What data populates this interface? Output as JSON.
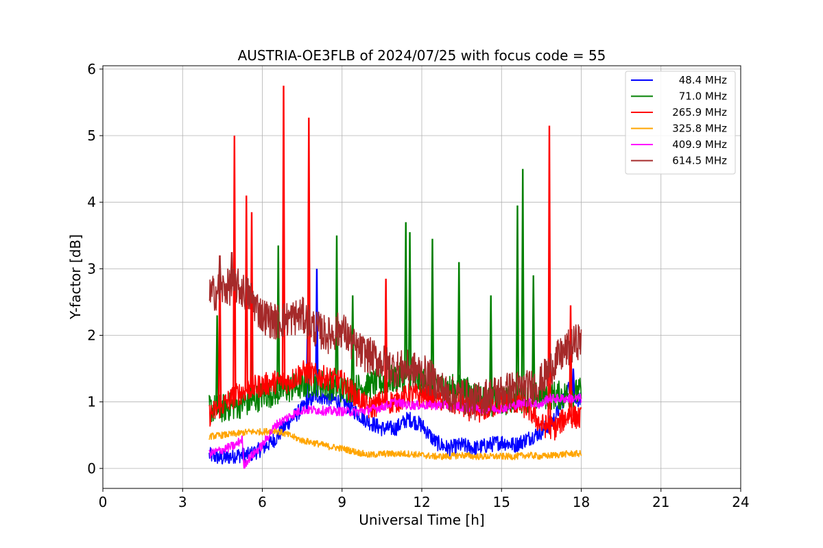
{
  "chart_data": {
    "type": "line",
    "title": "AUSTRIA-OE3FLB of 2024/07/25 with focus code = 55",
    "xlabel": "Universal Time [h]",
    "ylabel": "Y-factor [dB]",
    "xlim": [
      0,
      24
    ],
    "ylim": [
      -0.3,
      6.05
    ],
    "xticks": [
      0,
      3,
      6,
      9,
      12,
      15,
      18,
      21,
      24
    ],
    "yticks": [
      0,
      1,
      2,
      3,
      4,
      5,
      6
    ],
    "grid": true,
    "legend_position": "top-right",
    "series": [
      {
        "name": "48.4 MHz",
        "color": "#0000ff",
        "x": [
          4.0,
          4.5,
          5.0,
          5.5,
          6.0,
          6.5,
          7.0,
          7.5,
          8.0,
          8.5,
          9.0,
          9.5,
          10.0,
          10.5,
          11.0,
          11.5,
          12.0,
          12.5,
          13.0,
          13.5,
          14.0,
          14.5,
          15.0,
          15.5,
          16.0,
          16.5,
          17.0,
          17.5,
          18.0
        ],
        "y": [
          0.2,
          0.15,
          0.2,
          0.2,
          0.3,
          0.45,
          0.7,
          0.9,
          1.1,
          1.05,
          1.0,
          0.85,
          0.7,
          0.6,
          0.6,
          0.75,
          0.65,
          0.4,
          0.3,
          0.35,
          0.3,
          0.35,
          0.4,
          0.35,
          0.45,
          0.55,
          0.75,
          1.2,
          1.0
        ],
        "spikes": [
          [
            8.05,
            3.0
          ],
          [
            7.7,
            2.1
          ],
          [
            17.7,
            1.5
          ]
        ]
      },
      {
        "name": "71.0 MHz",
        "color": "#008000",
        "x": [
          4.0,
          4.5,
          5.0,
          5.5,
          6.0,
          6.5,
          7.0,
          7.5,
          8.0,
          8.5,
          9.0,
          9.5,
          10.0,
          10.5,
          11.0,
          11.5,
          12.0,
          12.5,
          13.0,
          13.5,
          14.0,
          14.5,
          15.0,
          15.5,
          16.0,
          16.5,
          17.0,
          17.5,
          18.0
        ],
        "y": [
          0.9,
          0.9,
          0.95,
          1.0,
          1.1,
          1.15,
          1.2,
          1.25,
          1.3,
          1.25,
          1.2,
          1.2,
          1.25,
          1.3,
          1.35,
          1.4,
          1.3,
          1.25,
          1.2,
          1.2,
          1.1,
          1.0,
          1.0,
          1.05,
          1.05,
          1.1,
          1.1,
          1.1,
          1.15
        ],
        "spikes": [
          [
            4.3,
            2.3
          ],
          [
            5.6,
            3.3
          ],
          [
            6.6,
            3.35
          ],
          [
            8.8,
            3.5
          ],
          [
            11.4,
            3.7
          ],
          [
            11.55,
            3.55
          ],
          [
            12.4,
            3.45
          ],
          [
            13.4,
            3.1
          ],
          [
            15.8,
            4.5
          ],
          [
            15.6,
            3.95
          ],
          [
            16.2,
            2.9
          ],
          [
            14.6,
            2.6
          ],
          [
            9.4,
            2.6
          ]
        ]
      },
      {
        "name": "265.9 MHz",
        "color": "#ff0000",
        "x": [
          4.0,
          4.5,
          5.0,
          5.5,
          6.0,
          6.5,
          7.0,
          7.5,
          8.0,
          8.5,
          9.0,
          9.5,
          10.0,
          10.5,
          11.0,
          11.5,
          12.0,
          12.5,
          13.0,
          13.5,
          14.0,
          14.5,
          15.0,
          15.5,
          16.0,
          16.5,
          17.0,
          17.5,
          18.0
        ],
        "y": [
          0.8,
          0.95,
          1.1,
          1.2,
          1.25,
          1.3,
          1.3,
          1.45,
          1.4,
          1.35,
          1.3,
          1.1,
          0.9,
          1.0,
          1.0,
          1.1,
          1.1,
          1.05,
          1.0,
          0.95,
          0.85,
          0.9,
          1.0,
          1.0,
          0.9,
          0.65,
          0.6,
          0.8,
          0.75
        ],
        "spikes": [
          [
            4.95,
            5.0
          ],
          [
            5.4,
            4.1
          ],
          [
            5.6,
            3.85
          ],
          [
            6.8,
            5.75
          ],
          [
            7.75,
            5.27
          ],
          [
            10.65,
            2.85
          ],
          [
            16.8,
            5.15
          ],
          [
            17.6,
            2.45
          ],
          [
            4.4,
            3.2
          ]
        ]
      },
      {
        "name": "325.8 MHz",
        "color": "#ffa500",
        "x": [
          4.0,
          4.5,
          5.0,
          5.5,
          6.0,
          6.5,
          7.0,
          7.5,
          8.0,
          8.5,
          9.0,
          9.5,
          10.0,
          10.5,
          11.0,
          11.5,
          12.0,
          12.5,
          13.0,
          13.5,
          14.0,
          14.5,
          15.0,
          15.5,
          16.0,
          16.5,
          17.0,
          17.5,
          18.0
        ],
        "y": [
          0.48,
          0.5,
          0.52,
          0.55,
          0.55,
          0.57,
          0.5,
          0.42,
          0.38,
          0.33,
          0.3,
          0.25,
          0.2,
          0.22,
          0.22,
          0.22,
          0.2,
          0.18,
          0.18,
          0.2,
          0.18,
          0.18,
          0.18,
          0.18,
          0.2,
          0.18,
          0.2,
          0.22,
          0.22
        ],
        "spikes": []
      },
      {
        "name": "409.9 MHz",
        "color": "#ff00ff",
        "x": [
          4.0,
          4.5,
          5.0,
          5.25,
          5.3,
          5.5,
          6.0,
          6.5,
          7.0,
          7.5,
          8.0,
          8.5,
          9.0,
          9.5,
          10.0,
          10.5,
          11.0,
          11.5,
          12.0,
          12.5,
          13.0,
          13.5,
          14.0,
          14.5,
          15.0,
          15.5,
          16.0,
          16.5,
          16.7,
          17.0,
          17.5,
          18.0
        ],
        "y": [
          0.22,
          0.28,
          0.35,
          0.45,
          0.05,
          0.15,
          0.35,
          0.65,
          0.78,
          0.88,
          0.88,
          0.86,
          0.86,
          0.85,
          0.88,
          0.92,
          1.0,
          0.95,
          0.95,
          0.95,
          0.95,
          0.93,
          0.9,
          0.9,
          0.9,
          0.95,
          1.0,
          0.95,
          1.05,
          1.05,
          1.05,
          1.05
        ],
        "spikes": []
      },
      {
        "name": "614.5 MHz",
        "color": "#a52a2a",
        "x": [
          4.0,
          4.5,
          5.0,
          5.5,
          6.0,
          6.5,
          7.0,
          7.5,
          8.0,
          8.5,
          9.0,
          9.5,
          10.0,
          10.5,
          11.0,
          11.5,
          12.0,
          12.5,
          13.0,
          13.5,
          14.0,
          14.5,
          15.0,
          15.5,
          16.0,
          16.5,
          17.0,
          17.5,
          18.0
        ],
        "y": [
          2.6,
          2.7,
          2.75,
          2.6,
          2.3,
          2.2,
          2.25,
          2.3,
          2.1,
          2.0,
          2.1,
          1.8,
          1.7,
          1.6,
          1.5,
          1.5,
          1.45,
          1.3,
          1.1,
          1.1,
          1.0,
          1.1,
          1.15,
          1.2,
          1.2,
          1.3,
          1.6,
          1.8,
          1.95
        ],
        "spikes": [
          [
            4.85,
            3.25
          ],
          [
            4.4,
            3.2
          ]
        ]
      }
    ]
  }
}
